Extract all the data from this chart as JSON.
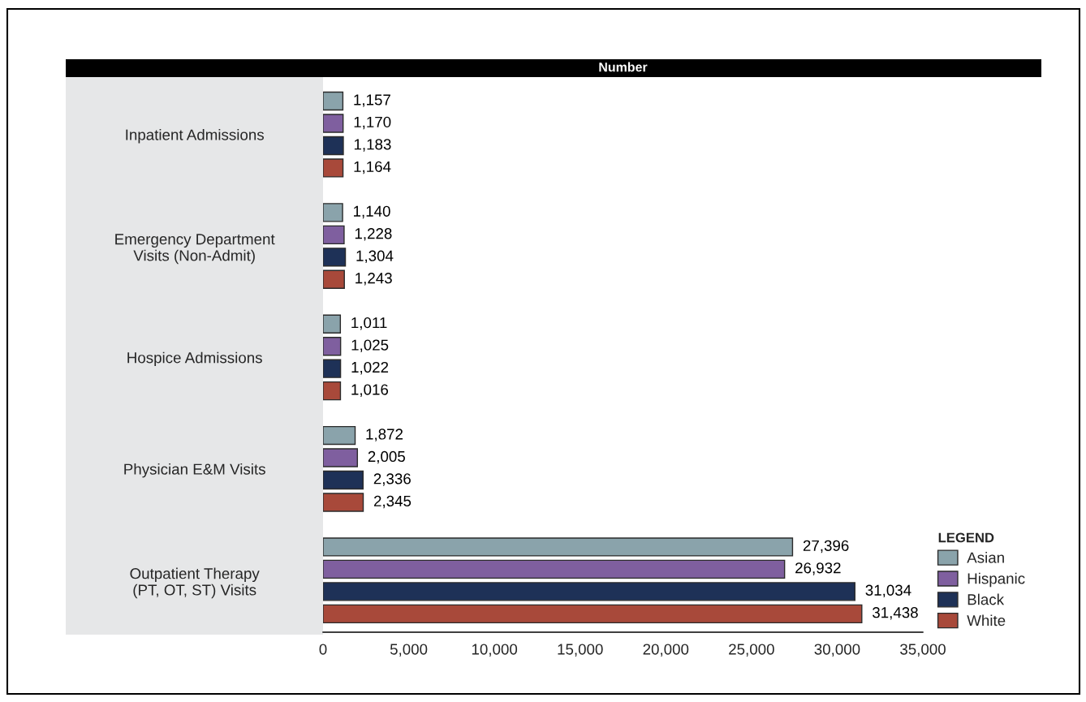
{
  "chart_data": {
    "type": "bar",
    "orientation": "horizontal",
    "title": "Number",
    "legend_title": "LEGEND",
    "legend": "bottom right",
    "categories": [
      "Inpatient Admissions",
      "Emergency Department\nVisits (Non-Admit)",
      "Hospice Admissions",
      "Physician E&M Visits",
      "Outpatient Therapy\n(PT, OT, ST) Visits"
    ],
    "series": [
      {
        "name": "Asian",
        "color": "#8aa3ab",
        "values": [
          1157,
          1140,
          1011,
          1872,
          27396
        ],
        "value_labels": [
          "1,157",
          "1,140",
          "1,011",
          "1,872",
          "27,396"
        ]
      },
      {
        "name": "Hispanic",
        "color": "#7f5f9f",
        "values": [
          1170,
          1228,
          1025,
          2005,
          26932
        ],
        "value_labels": [
          "1,170",
          "1,228",
          "1,025",
          "2,005",
          "26,932"
        ]
      },
      {
        "name": "Black",
        "color": "#1e3157",
        "values": [
          1183,
          1304,
          1022,
          2336,
          31034
        ],
        "value_labels": [
          "1,183",
          "1,304",
          "1,022",
          "2,336",
          "31,034"
        ]
      },
      {
        "name": "White",
        "color": "#a8493a",
        "values": [
          1164,
          1243,
          1016,
          2345,
          31438
        ],
        "value_labels": [
          "1,164",
          "1,243",
          "1,016",
          "2,345",
          "31,438"
        ]
      }
    ],
    "xlim": [
      0,
      35000
    ],
    "xticks": [
      0,
      {
        "value": 5000,
        "label": "5,000"
      },
      {
        "value": 10000,
        "label": "10,000"
      },
      {
        "value": 15000,
        "label": "15,000"
      },
      {
        "value": 20000,
        "label": "20,000"
      },
      {
        "value": 25000,
        "label": "25,000"
      },
      {
        "value": 30000,
        "label": "30,000"
      },
      {
        "value": 35000,
        "label": "35,000"
      }
    ]
  }
}
